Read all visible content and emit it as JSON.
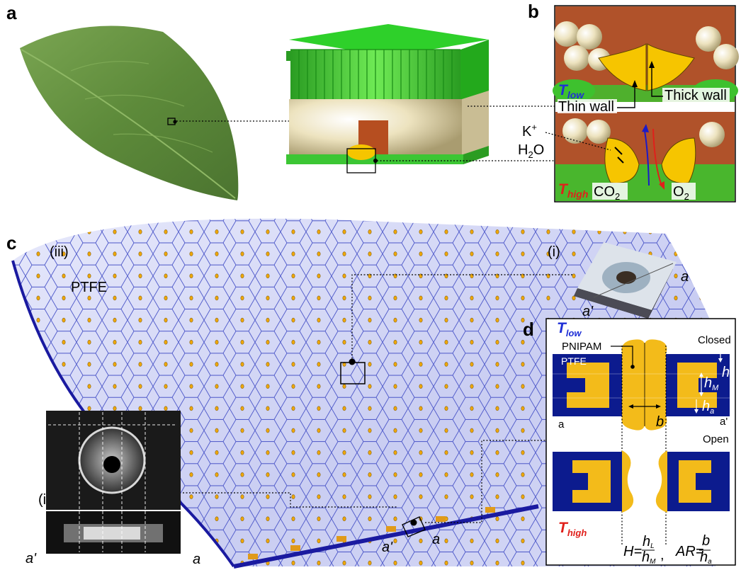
{
  "panel_labels": {
    "a": "a",
    "b": "b",
    "c": "c",
    "d": "d"
  },
  "panel_b": {
    "t_low": "T",
    "t_low_sub": "low",
    "t_high": "T",
    "t_high_sub": "high",
    "thin_wall": "Thin wall",
    "thick_wall": "Thick wall",
    "k_ion": "K",
    "k_charge": "+",
    "water_h": "H",
    "water_sub": "2",
    "water_o": "O",
    "co2": "CO",
    "co2_sub": "2",
    "o2": "O",
    "o2_sub": "2"
  },
  "panel_c": {
    "label_iii": "(iii)",
    "label_ii": "(ii)",
    "label_i": "(i)",
    "ptfe": "PTFE",
    "a_main": "a",
    "a_prime_main": "a'",
    "a_ii": "a",
    "a_prime_ii": "a'",
    "a_i": "a",
    "a_prime_i": "a'"
  },
  "panel_d": {
    "t_low": "T",
    "t_low_sub": "low",
    "t_high": "T",
    "t_high_sub": "high",
    "pnipam": "PNIPAM",
    "ptfe": "PTFE",
    "closed": "Closed",
    "open": "Open",
    "h_l": "h",
    "h_l_sub": "L",
    "h_m": "h",
    "h_m_sub": "M",
    "h_a": "h",
    "h_a_sub": "a",
    "b_gap": "b",
    "a_left": "a",
    "a_right": "a'",
    "eq_h": "H=",
    "eq_h_num": "h",
    "eq_h_num_sub": "L",
    "eq_h_den": "h",
    "eq_h_den_sub": "M",
    "eq_comma": ",",
    "eq_ar": "AR=",
    "eq_ar_num": "b",
    "eq_ar_den": "h",
    "eq_ar_den_sub": "a"
  },
  "colors": {
    "leaf_green": "#5d8a3a",
    "cell_green": "#3cc634",
    "cell_cream": "#ede3bf",
    "guard_yellow": "#f6c500",
    "membrane_blue": "#1a1aa0",
    "membrane_tint": "#cfd3f2",
    "ptfe_blue": "#0c1b8e",
    "pnipam_yellow": "#f3bb1a",
    "t_low_blue": "#1f2fd6",
    "t_high_red": "#e0201b"
  }
}
